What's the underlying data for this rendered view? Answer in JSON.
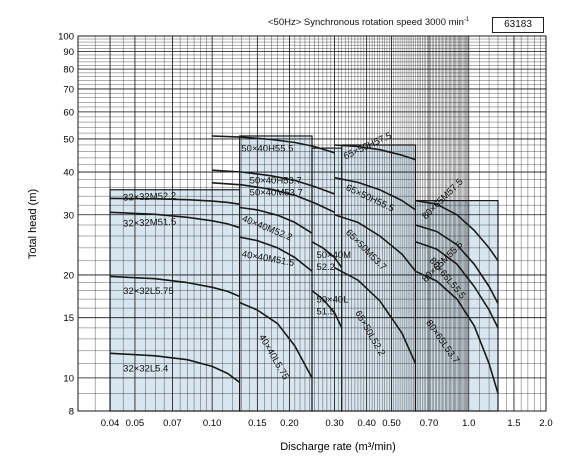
{
  "header": {
    "title": "<50Hz> Synchronous rotation speed 3000 min",
    "title_sup": "-1",
    "code": "63183"
  },
  "colors": {
    "region_fill": "#d8e6ef",
    "curve": "#1a1a1a",
    "grid": "#1a1a1a"
  },
  "chart_data": {
    "type": "line",
    "title": "<50Hz> Synchronous rotation speed 3000 min-1",
    "xlabel": "Discharge rate (m³/min)",
    "ylabel": "Total head (m)",
    "x_scale": "log",
    "y_scale": "log",
    "xlim": [
      0.03,
      2.0
    ],
    "ylim": [
      8,
      100
    ],
    "x_tick_labels": [
      "0.04",
      "0.05",
      "0.07",
      "0.10",
      "0.15",
      "0.20",
      "0.30",
      "0.40",
      "0.50",
      "0.70",
      "1.0",
      "1.5",
      "2.0"
    ],
    "x_ticks": [
      0.04,
      0.05,
      0.07,
      0.1,
      0.15,
      0.2,
      0.3,
      0.4,
      0.5,
      0.7,
      1.0,
      1.5,
      2.0
    ],
    "y_tick_labels": [
      "8",
      "10",
      "15",
      "20",
      "30",
      "40",
      "50",
      "60",
      "70",
      "80",
      "90",
      "100"
    ],
    "y_ticks": [
      8,
      10,
      15,
      20,
      30,
      40,
      50,
      60,
      70,
      80,
      90,
      100
    ],
    "grid": true,
    "regions": [
      {
        "x": [
          0.04,
          0.128
        ],
        "y": [
          8,
          35.5
        ]
      },
      {
        "x": [
          0.128,
          0.245
        ],
        "y": [
          8,
          51
        ]
      },
      {
        "x": [
          0.245,
          0.32
        ],
        "y": [
          8,
          47
        ]
      },
      {
        "x": [
          0.32,
          0.62
        ],
        "y": [
          8,
          48
        ]
      },
      {
        "x": [
          0.62,
          1.3
        ],
        "y": [
          8,
          33
        ]
      }
    ],
    "series": [
      {
        "name": "32×32M52.2",
        "x": [
          0.04,
          0.06,
          0.08,
          0.1,
          0.115,
          0.128
        ],
        "y": [
          33.5,
          33.4,
          33.2,
          32.9,
          32.6,
          32.2
        ]
      },
      {
        "name": "32×32M51.5",
        "x": [
          0.04,
          0.06,
          0.08,
          0.1,
          0.115,
          0.128
        ],
        "y": [
          30.5,
          30.1,
          29.5,
          28.8,
          28.2,
          27.5
        ]
      },
      {
        "name": "32×32L5.75",
        "x": [
          0.04,
          0.06,
          0.08,
          0.1,
          0.115,
          0.128
        ],
        "y": [
          19.8,
          19.5,
          19.0,
          18.4,
          17.9,
          17.3
        ]
      },
      {
        "name": "32×32L5.4",
        "x": [
          0.04,
          0.06,
          0.08,
          0.1,
          0.115,
          0.128
        ],
        "y": [
          11.8,
          11.6,
          11.3,
          10.8,
          10.3,
          9.7
        ]
      },
      {
        "name": "50×40H55.5",
        "x": [
          0.1,
          0.13,
          0.17,
          0.21,
          0.25,
          0.3
        ],
        "y": [
          51,
          50.6,
          49.8,
          48.8,
          47.5,
          45.5
        ]
      },
      {
        "name": "50×40H53.7",
        "x": [
          0.1,
          0.13,
          0.17,
          0.21,
          0.25,
          0.3
        ],
        "y": [
          40.5,
          40.0,
          39.0,
          37.8,
          36.3,
          34.5
        ]
      },
      {
        "name": "50×40M53.7",
        "x": [
          0.1,
          0.13,
          0.17,
          0.21,
          0.25,
          0.3
        ],
        "y": [
          37.2,
          36.7,
          35.6,
          34.2,
          32.5,
          30.5
        ]
      },
      {
        "name": "40×40M52.2",
        "x": [
          0.128,
          0.15,
          0.18,
          0.21,
          0.245
        ],
        "y": [
          31.5,
          31.0,
          29.9,
          28.5,
          26.5
        ]
      },
      {
        "name": "40×40M51.5",
        "x": [
          0.128,
          0.15,
          0.18,
          0.21,
          0.245
        ],
        "y": [
          25.8,
          25.2,
          24.0,
          22.5,
          20.5
        ]
      },
      {
        "name": "40×40L5.75",
        "x": [
          0.128,
          0.15,
          0.18,
          0.21,
          0.245
        ],
        "y": [
          16.6,
          15.8,
          14.4,
          12.4,
          10.0
        ]
      },
      {
        "name": "50×40M52.2",
        "x": [
          0.245,
          0.27,
          0.3,
          0.32
        ],
        "y": [
          25.0,
          24.0,
          22.5,
          21.0
        ]
      },
      {
        "name": "50×40L51.5",
        "x": [
          0.245,
          0.27,
          0.3,
          0.32
        ],
        "y": [
          18.0,
          17.0,
          15.5,
          14.0
        ]
      },
      {
        "name": "65×50H57.5",
        "x": [
          0.3,
          0.37,
          0.45,
          0.55,
          0.62
        ],
        "y": [
          48.0,
          47.5,
          46.5,
          44.8,
          43.5
        ]
      },
      {
        "name": "65×50H55.5",
        "x": [
          0.3,
          0.37,
          0.45,
          0.55,
          0.62
        ],
        "y": [
          38.5,
          37.3,
          35.5,
          33.0,
          31.0
        ]
      },
      {
        "name": "65×50M53.7",
        "x": [
          0.3,
          0.37,
          0.45,
          0.55,
          0.62
        ],
        "y": [
          30.0,
          28.5,
          26.0,
          23.0,
          20.5
        ]
      },
      {
        "name": "65×50L52.2",
        "x": [
          0.3,
          0.37,
          0.45,
          0.55,
          0.62
        ],
        "y": [
          21.0,
          19.3,
          16.8,
          13.5,
          11.0
        ]
      },
      {
        "name": "80×65M57.5",
        "x": [
          0.62,
          0.75,
          0.9,
          1.05,
          1.2,
          1.3
        ],
        "y": [
          33.0,
          32.2,
          30.0,
          27.0,
          24.0,
          22.0
        ]
      },
      {
        "name": "80×65L55.5",
        "x": [
          0.62,
          0.75,
          0.9,
          1.05,
          1.2,
          1.3
        ],
        "y": [
          28.0,
          26.8,
          24.5,
          21.5,
          18.5,
          16.5
        ]
      },
      {
        "name": "80×65M55.5",
        "x": [
          0.62,
          0.75,
          0.9,
          1.05,
          1.2,
          1.3
        ],
        "y": [
          25.0,
          23.8,
          21.5,
          18.5,
          15.8,
          14.0
        ]
      },
      {
        "name": "80×65L53.7",
        "x": [
          0.62,
          0.75,
          0.9,
          1.05,
          1.2,
          1.3
        ],
        "y": [
          20.5,
          19.2,
          17.0,
          14.2,
          11.0,
          9.0
        ]
      }
    ],
    "labels": [
      {
        "text": "32×32M52.2",
        "x": 0.045,
        "y": 33.0,
        "angle": -2
      },
      {
        "text": "32×32M51.5",
        "x": 0.045,
        "y": 27.7,
        "angle": -2
      },
      {
        "text": "32×32L5.75",
        "x": 0.045,
        "y": 17.6,
        "angle": 0
      },
      {
        "text": "32×32L5.4",
        "x": 0.045,
        "y": 10.45,
        "angle": 0
      },
      {
        "text": "50×40H55.5",
        "x": 0.13,
        "y": 46.0,
        "angle": 0
      },
      {
        "text": "50×40H53.7",
        "x": 0.14,
        "y": 37.0,
        "angle": 0
      },
      {
        "text": "50×40M53.7",
        "x": 0.14,
        "y": 34.2,
        "angle": 0
      },
      {
        "text": "40×40M52.2",
        "x": 0.13,
        "y": 28.8,
        "angle": 22
      },
      {
        "text": "40×40M51.5",
        "x": 0.13,
        "y": 22.6,
        "angle": 10
      },
      {
        "text": "40×40L5.75",
        "x": 0.152,
        "y": 13.2,
        "angle": 60
      },
      {
        "text": "50×40M",
        "x": 0.255,
        "y": 22.4,
        "angle": 0
      },
      {
        "text": "52.2",
        "x": 0.255,
        "y": 20.7,
        "angle": 0
      },
      {
        "text": "50×40L",
        "x": 0.255,
        "y": 16.6,
        "angle": 0
      },
      {
        "text": "51.5",
        "x": 0.255,
        "y": 15.3,
        "angle": 0
      },
      {
        "text": "65×50H57.5",
        "x": 0.33,
        "y": 43.5,
        "angle": -25
      },
      {
        "text": "65×50H55.5",
        "x": 0.33,
        "y": 35.5,
        "angle": 25
      },
      {
        "text": "65×50M53.7",
        "x": 0.33,
        "y": 26.5,
        "angle": 45
      },
      {
        "text": "65×50L52.2",
        "x": 0.36,
        "y": 15.5,
        "angle": 60
      },
      {
        "text": "80×65M57.5",
        "x": 0.68,
        "y": 29.0,
        "angle": -45
      },
      {
        "text": "80×65L55.5",
        "x": 0.7,
        "y": 22.0,
        "angle": 50
      },
      {
        "text": "80×65M55.5",
        "x": 0.68,
        "y": 19.0,
        "angle": -45
      },
      {
        "text": "80×65L53.7",
        "x": 0.68,
        "y": 14.5,
        "angle": 55
      }
    ]
  }
}
